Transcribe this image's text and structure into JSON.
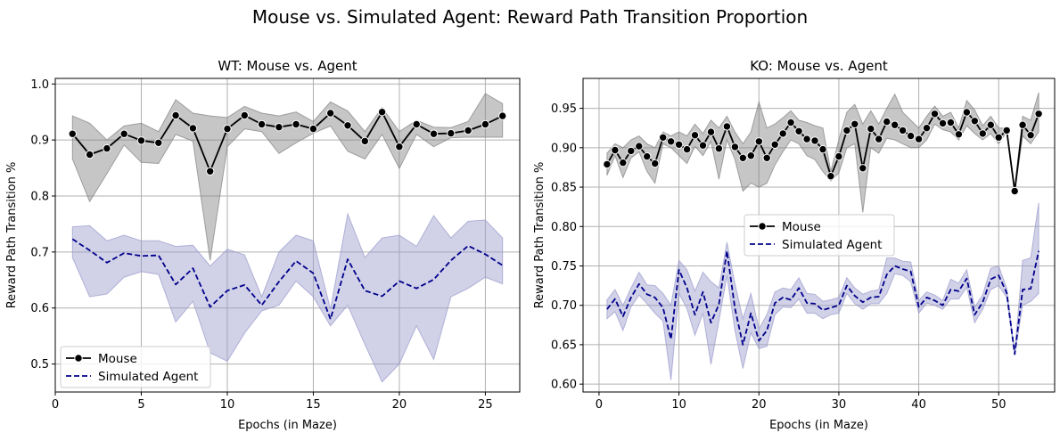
{
  "title": "Mouse vs. Simulated Agent: Reward Path Transition Proportion",
  "chart_data": [
    {
      "type": "line",
      "title": "WT: Mouse vs. Agent",
      "xlabel": "Epochs (in Maze)",
      "ylabel": "Reward Path Transition %",
      "xlim": [
        0,
        27
      ],
      "ylim": [
        0.45,
        1.01
      ],
      "xticks": [
        0,
        5,
        10,
        15,
        20,
        25
      ],
      "yticks": [
        0.5,
        0.6,
        0.7,
        0.8,
        0.9,
        1.0
      ],
      "ytick_labels": [
        "0.5",
        "0.6",
        "0.7",
        "0.8",
        "0.9",
        "1.0"
      ],
      "grid": true,
      "legend_position": "lower-left",
      "series": [
        {
          "name": "Mouse",
          "style": "solid-marker",
          "color": "#000000",
          "band_color": "#808080",
          "x": [
            1,
            2,
            3,
            4,
            5,
            6,
            7,
            8,
            9,
            10,
            11,
            12,
            13,
            14,
            15,
            16,
            17,
            18,
            19,
            20,
            21,
            22,
            23,
            24,
            25,
            26
          ],
          "values": [
            0.911,
            0.874,
            0.885,
            0.911,
            0.899,
            0.895,
            0.944,
            0.921,
            0.844,
            0.92,
            0.944,
            0.928,
            0.923,
            0.928,
            0.92,
            0.948,
            0.926,
            0.898,
            0.95,
            0.888,
            0.928,
            0.911,
            0.912,
            0.917,
            0.928,
            0.943
          ],
          "lower": [
            0.866,
            0.79,
            0.84,
            0.891,
            0.86,
            0.858,
            0.91,
            0.898,
            0.685,
            0.888,
            0.92,
            0.915,
            0.876,
            0.895,
            0.912,
            0.925,
            0.88,
            0.866,
            0.91,
            0.849,
            0.91,
            0.888,
            0.904,
            0.905,
            0.905,
            0.905
          ],
          "upper": [
            0.943,
            0.93,
            0.9,
            0.925,
            0.93,
            0.915,
            0.972,
            0.948,
            0.943,
            0.94,
            0.96,
            0.948,
            0.943,
            0.95,
            0.933,
            0.968,
            0.952,
            0.915,
            0.958,
            0.915,
            0.935,
            0.923,
            0.922,
            0.933,
            0.983,
            0.965
          ]
        },
        {
          "name": "Simulated Agent",
          "style": "dashed",
          "color": "#00008b",
          "band_color": "#9999cc",
          "x": [
            1,
            2,
            3,
            4,
            5,
            6,
            7,
            8,
            9,
            10,
            11,
            12,
            13,
            14,
            15,
            16,
            17,
            18,
            19,
            20,
            21,
            22,
            23,
            24,
            25,
            26
          ],
          "values": [
            0.723,
            0.703,
            0.681,
            0.698,
            0.693,
            0.694,
            0.642,
            0.671,
            0.602,
            0.631,
            0.641,
            0.605,
            0.647,
            0.684,
            0.662,
            0.58,
            0.687,
            0.631,
            0.621,
            0.648,
            0.635,
            0.651,
            0.685,
            0.711,
            0.696,
            0.676
          ],
          "lower": [
            0.69,
            0.62,
            0.625,
            0.655,
            0.665,
            0.66,
            0.575,
            0.612,
            0.52,
            0.505,
            0.555,
            0.595,
            0.605,
            0.648,
            0.62,
            0.568,
            0.605,
            0.535,
            0.468,
            0.5,
            0.568,
            0.508,
            0.62,
            0.635,
            0.655,
            0.643
          ],
          "upper": [
            0.745,
            0.747,
            0.72,
            0.73,
            0.72,
            0.72,
            0.71,
            0.712,
            0.675,
            0.705,
            0.695,
            0.62,
            0.7,
            0.73,
            0.72,
            0.598,
            0.768,
            0.69,
            0.725,
            0.73,
            0.71,
            0.765,
            0.725,
            0.755,
            0.757,
            0.725
          ]
        }
      ]
    },
    {
      "type": "line",
      "title": "KO: Mouse vs. Agent",
      "xlabel": "Epochs (in Maze)",
      "ylabel": "Reward Path Transition %",
      "xlim": [
        -2,
        57
      ],
      "ylim": [
        0.59,
        0.988
      ],
      "xticks": [
        0,
        10,
        20,
        30,
        40,
        50
      ],
      "yticks": [
        0.6,
        0.65,
        0.7,
        0.75,
        0.8,
        0.85,
        0.9,
        0.95
      ],
      "ytick_labels": [
        "0.60",
        "0.65",
        "0.70",
        "0.75",
        "0.80",
        "0.85",
        "0.90",
        "0.95"
      ],
      "grid": true,
      "legend_position": "center",
      "series": [
        {
          "name": "Mouse",
          "style": "solid-marker",
          "color": "#000000",
          "band_color": "#808080",
          "x": [
            1,
            2,
            3,
            4,
            5,
            6,
            7,
            8,
            9,
            10,
            11,
            12,
            13,
            14,
            15,
            16,
            17,
            18,
            19,
            20,
            21,
            22,
            23,
            24,
            25,
            26,
            27,
            28,
            29,
            30,
            31,
            32,
            33,
            34,
            35,
            36,
            37,
            38,
            39,
            40,
            41,
            42,
            43,
            44,
            45,
            46,
            47,
            48,
            49,
            50,
            51,
            52,
            53,
            54,
            55
          ],
          "values": [
            0.879,
            0.897,
            0.881,
            0.896,
            0.902,
            0.889,
            0.88,
            0.913,
            0.908,
            0.904,
            0.898,
            0.916,
            0.903,
            0.92,
            0.899,
            0.927,
            0.901,
            0.887,
            0.89,
            0.908,
            0.887,
            0.904,
            0.918,
            0.932,
            0.921,
            0.911,
            0.909,
            0.898,
            0.864,
            0.889,
            0.922,
            0.93,
            0.874,
            0.924,
            0.911,
            0.933,
            0.929,
            0.922,
            0.915,
            0.911,
            0.925,
            0.943,
            0.931,
            0.932,
            0.917,
            0.945,
            0.934,
            0.918,
            0.929,
            0.913,
            0.922,
            0.845,
            0.929,
            0.916,
            0.943
          ],
          "lower": [
            0.865,
            0.89,
            0.862,
            0.887,
            0.895,
            0.87,
            0.855,
            0.905,
            0.9,
            0.89,
            0.88,
            0.902,
            0.89,
            0.908,
            0.86,
            0.91,
            0.885,
            0.845,
            0.855,
            0.85,
            0.855,
            0.878,
            0.895,
            0.91,
            0.905,
            0.89,
            0.885,
            0.87,
            0.858,
            0.868,
            0.9,
            0.905,
            0.818,
            0.9,
            0.893,
            0.912,
            0.91,
            0.905,
            0.9,
            0.9,
            0.91,
            0.93,
            0.923,
            0.92,
            0.91,
            0.928,
            0.918,
            0.91,
            0.918,
            0.905,
            0.92,
            0.843,
            0.915,
            0.905,
            0.92
          ],
          "upper": [
            0.893,
            0.905,
            0.9,
            0.91,
            0.915,
            0.905,
            0.9,
            0.92,
            0.915,
            0.92,
            0.915,
            0.93,
            0.918,
            0.935,
            0.925,
            0.94,
            0.92,
            0.905,
            0.92,
            0.958,
            0.925,
            0.93,
            0.938,
            0.947,
            0.935,
            0.932,
            0.928,
            0.925,
            0.87,
            0.91,
            0.945,
            0.955,
            0.93,
            0.947,
            0.93,
            0.95,
            0.968,
            0.945,
            0.935,
            0.925,
            0.94,
            0.953,
            0.94,
            0.945,
            0.925,
            0.96,
            0.948,
            0.928,
            0.94,
            0.925,
            0.925,
            0.848,
            0.94,
            0.935,
            0.97
          ]
        },
        {
          "name": "Simulated Agent",
          "style": "dashed",
          "color": "#00008b",
          "band_color": "#9999cc",
          "x": [
            1,
            2,
            3,
            4,
            5,
            6,
            7,
            8,
            9,
            10,
            11,
            12,
            13,
            14,
            15,
            16,
            17,
            18,
            19,
            20,
            21,
            22,
            23,
            24,
            25,
            26,
            27,
            28,
            29,
            30,
            31,
            32,
            33,
            34,
            35,
            36,
            37,
            38,
            39,
            40,
            41,
            42,
            43,
            44,
            45,
            46,
            47,
            48,
            49,
            50,
            51,
            52,
            53,
            54,
            55
          ],
          "values": [
            0.695,
            0.708,
            0.686,
            0.71,
            0.727,
            0.714,
            0.71,
            0.697,
            0.657,
            0.745,
            0.722,
            0.688,
            0.717,
            0.678,
            0.701,
            0.769,
            0.696,
            0.65,
            0.69,
            0.655,
            0.668,
            0.703,
            0.71,
            0.707,
            0.722,
            0.703,
            0.702,
            0.694,
            0.697,
            0.7,
            0.725,
            0.712,
            0.704,
            0.71,
            0.711,
            0.739,
            0.75,
            0.746,
            0.743,
            0.698,
            0.71,
            0.706,
            0.7,
            0.72,
            0.718,
            0.734,
            0.688,
            0.704,
            0.733,
            0.738,
            0.716,
            0.638,
            0.72,
            0.721,
            0.769
          ],
          "lower": [
            0.683,
            0.692,
            0.668,
            0.698,
            0.713,
            0.702,
            0.69,
            0.68,
            0.605,
            0.715,
            0.696,
            0.662,
            0.69,
            0.625,
            0.68,
            0.738,
            0.668,
            0.62,
            0.665,
            0.645,
            0.648,
            0.688,
            0.698,
            0.697,
            0.708,
            0.69,
            0.69,
            0.683,
            0.688,
            0.69,
            0.715,
            0.702,
            0.695,
            0.702,
            0.702,
            0.715,
            0.74,
            0.738,
            0.73,
            0.69,
            0.703,
            0.7,
            0.695,
            0.708,
            0.708,
            0.723,
            0.678,
            0.695,
            0.72,
            0.725,
            0.71,
            0.637,
            0.7,
            0.705,
            0.715
          ],
          "upper": [
            0.707,
            0.72,
            0.7,
            0.722,
            0.742,
            0.726,
            0.725,
            0.715,
            0.7,
            0.757,
            0.745,
            0.718,
            0.742,
            0.73,
            0.722,
            0.78,
            0.727,
            0.683,
            0.715,
            0.67,
            0.688,
            0.717,
            0.722,
            0.72,
            0.735,
            0.715,
            0.714,
            0.705,
            0.707,
            0.71,
            0.735,
            0.722,
            0.714,
            0.718,
            0.72,
            0.76,
            0.76,
            0.756,
            0.755,
            0.706,
            0.717,
            0.713,
            0.706,
            0.733,
            0.728,
            0.745,
            0.698,
            0.713,
            0.747,
            0.75,
            0.722,
            0.64,
            0.757,
            0.76,
            0.83
          ]
        }
      ]
    }
  ]
}
